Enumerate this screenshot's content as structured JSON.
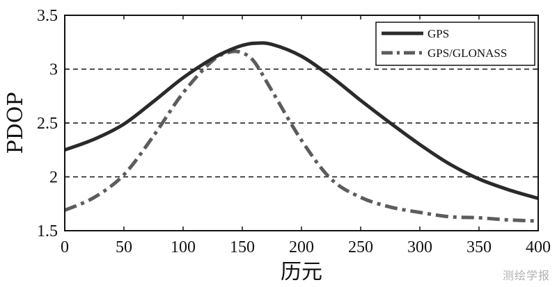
{
  "chart_data": {
    "type": "line",
    "title": "",
    "xlabel": "历元",
    "ylabel": "PDOP",
    "xlim": [
      0,
      400
    ],
    "ylim": [
      1.5,
      3.5
    ],
    "x_ticks": [
      0,
      50,
      100,
      150,
      200,
      250,
      300,
      350,
      400
    ],
    "y_ticks": [
      1.5,
      2,
      2.5,
      3,
      3.5
    ],
    "y_tick_labels": [
      "1.5",
      "2",
      "2.5",
      "3",
      "3.5"
    ],
    "grid": "horizontal dashed at y = 2, 2.5, 3",
    "legend_position": "top-right",
    "x": [
      0,
      25,
      50,
      75,
      100,
      125,
      140,
      150,
      160,
      175,
      200,
      225,
      250,
      275,
      300,
      325,
      350,
      375,
      400
    ],
    "series": [
      {
        "name": "GPS",
        "style": "solid",
        "color": "#2a2a2a",
        "values": [
          2.25,
          2.35,
          2.49,
          2.7,
          2.92,
          3.1,
          3.18,
          3.22,
          3.24,
          3.23,
          3.12,
          2.93,
          2.71,
          2.5,
          2.3,
          2.12,
          1.98,
          1.88,
          1.8
        ]
      },
      {
        "name": "GPS/GLONASS",
        "style": "dash-dot",
        "color": "#5c5c5c",
        "values": [
          1.69,
          1.81,
          2.02,
          2.38,
          2.78,
          3.08,
          3.16,
          3.15,
          3.07,
          2.8,
          2.34,
          1.98,
          1.81,
          1.72,
          1.67,
          1.63,
          1.62,
          1.6,
          1.59
        ]
      }
    ]
  },
  "watermark": "测绘学报"
}
